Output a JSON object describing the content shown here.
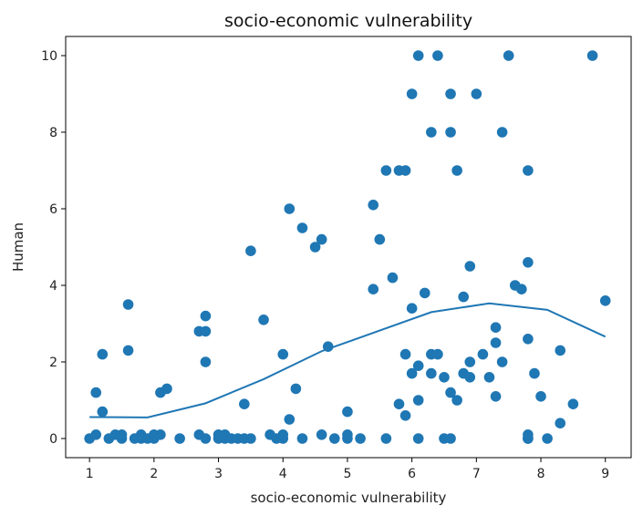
{
  "chart_data": {
    "type": "scatter",
    "title": "socio-economic vulnerability",
    "xlabel": "socio-economic vulnerability",
    "ylabel": "Human",
    "xlim": [
      0.63,
      9.4
    ],
    "ylim": [
      -0.5,
      10.5
    ],
    "xticks": [
      1,
      2,
      3,
      4,
      5,
      6,
      7,
      8,
      9
    ],
    "yticks": [
      0,
      2,
      4,
      6,
      8,
      10
    ],
    "grid": false,
    "colors": {
      "points": "#1f77b4",
      "line": "#1f77b4",
      "axes": "#000000"
    },
    "series": [
      {
        "kind": "points",
        "x": [
          1,
          1.1,
          1.1,
          1.2,
          1.2,
          1.3,
          1.4,
          1.5,
          1.5,
          1.6,
          1.6,
          1.7,
          1.8,
          1.8,
          1.9,
          2,
          2,
          2.1,
          2.1,
          2.2,
          2.4,
          2.7,
          2.7,
          2.8,
          2.8,
          2.8,
          2.8,
          3,
          3,
          3.1,
          3.1,
          3.2,
          3.3,
          3.4,
          3.4,
          3.5,
          3.5,
          3.7,
          3.8,
          3.9,
          4,
          4,
          4,
          4.1,
          4.1,
          4.2,
          4.3,
          4.3,
          4.5,
          4.6,
          4.6,
          4.7,
          4.8,
          5,
          5,
          5,
          5.2,
          5.4,
          5.4,
          5.5,
          5.6,
          5.6,
          5.7,
          5.8,
          5.8,
          5.9,
          5.9,
          5.9,
          6,
          6,
          6,
          6.1,
          6.1,
          6.1,
          6.1,
          6.2,
          6.3,
          6.3,
          6.3,
          6.4,
          6.4,
          6.5,
          6.5,
          6.6,
          6.6,
          6.6,
          6.6,
          6.7,
          6.7,
          6.8,
          6.8,
          6.9,
          6.9,
          6.9,
          7,
          7.1,
          7.2,
          7.3,
          7.3,
          7.3,
          7.4,
          7.4,
          7.5,
          7.6,
          7.7,
          7.8,
          7.8,
          7.8,
          7.8,
          7.8,
          7.8,
          7.9,
          8,
          8.1,
          8.3,
          8.3,
          8.5,
          8.8,
          9
        ],
        "y": [
          0,
          0.1,
          1.2,
          0.7,
          2.2,
          0,
          0.1,
          0,
          0.1,
          3.5,
          2.3,
          0,
          0.1,
          0,
          0,
          0,
          0.1,
          1.2,
          0.1,
          1.3,
          0,
          2.8,
          0.1,
          3.2,
          2.8,
          2,
          0,
          0.1,
          0,
          0,
          0.1,
          0,
          0,
          0.9,
          0,
          4.9,
          0,
          3.1,
          0.1,
          0,
          0,
          2.2,
          0.1,
          6,
          0.5,
          1.3,
          5.5,
          0,
          5,
          5.2,
          0.1,
          2.4,
          0,
          0.7,
          0.1,
          0,
          0,
          6.1,
          3.9,
          5.2,
          7,
          0,
          4.2,
          0.9,
          7,
          7,
          2.2,
          0.6,
          3.4,
          1.7,
          9,
          10,
          1.9,
          1,
          0,
          3.8,
          8,
          2.2,
          1.7,
          2.2,
          10,
          1.6,
          0,
          9,
          8,
          1.2,
          0,
          7,
          1,
          3.7,
          1.7,
          2,
          4.5,
          1.6,
          9,
          2.2,
          1.6,
          1.1,
          2.9,
          2.5,
          2,
          8,
          10,
          4,
          3.9,
          2.6,
          4.6,
          7,
          0.1,
          0,
          0,
          1.7,
          1.1,
          0,
          0.4,
          2.3,
          0.9,
          10,
          3.6
        ]
      },
      {
        "kind": "line",
        "x": [
          1,
          1.9,
          2.8,
          3.7,
          4.6,
          5.5,
          6.3,
          7.2,
          8.1,
          9
        ],
        "y": [
          0.56,
          0.55,
          0.92,
          1.55,
          2.28,
          2.82,
          3.3,
          3.53,
          3.36,
          2.66
        ]
      }
    ]
  }
}
